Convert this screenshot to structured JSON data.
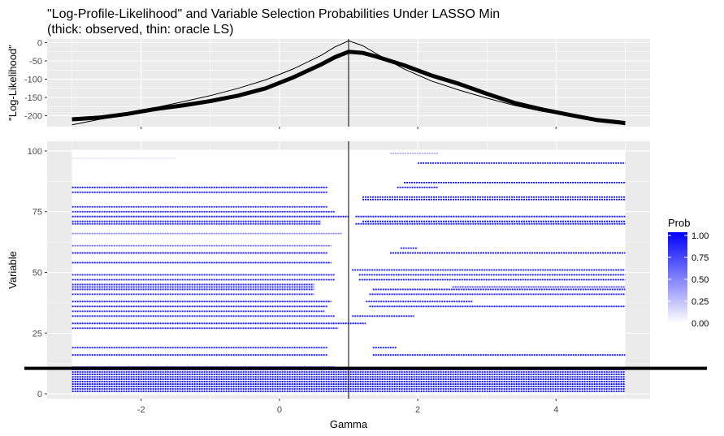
{
  "chart_data": {
    "type": "line+heatmap",
    "title": "\"Log-Profile-Likelihood\" and Variable Selection Probabilities Under LASSO Min",
    "subtitle": "(thick: observed, thin: oracle LS)",
    "xlabel": "Gamma",
    "x_range": [
      -3.0,
      5.0
    ],
    "x_ticks": [
      "-2",
      "0",
      "2",
      "4"
    ],
    "x_tick_values": [
      -2,
      0,
      2,
      4
    ],
    "vertical_line_x": 1.0,
    "top_panel": {
      "ylabel": "\"Log-Likelihood\"",
      "ylim": [
        -230,
        10
      ],
      "y_ticks": [
        "0",
        "-50",
        "-100",
        "-150",
        "-200"
      ],
      "y_tick_values": [
        0,
        -50,
        -100,
        -150,
        -200
      ],
      "observed_series": {
        "x": [
          -3.0,
          -2.6,
          -2.2,
          -1.8,
          -1.4,
          -1.0,
          -0.6,
          -0.2,
          0.2,
          0.6,
          0.8,
          1.0,
          1.2,
          1.4,
          1.8,
          2.2,
          2.6,
          3.0,
          3.4,
          3.8,
          4.2,
          4.6,
          5.0
        ],
        "y": [
          -210,
          -205,
          -195,
          -182,
          -172,
          -160,
          -145,
          -125,
          -95,
          -60,
          -40,
          -25,
          -28,
          -38,
          -62,
          -90,
          -113,
          -140,
          -165,
          -183,
          -198,
          -212,
          -220
        ]
      },
      "oracle_series": {
        "x": [
          -3.0,
          -2.6,
          -2.2,
          -1.8,
          -1.4,
          -1.0,
          -0.6,
          -0.2,
          0.2,
          0.6,
          0.8,
          1.0,
          1.2,
          1.4,
          1.8,
          2.2,
          2.6,
          3.0,
          3.4,
          3.8,
          4.2,
          4.6,
          5.0
        ],
        "y": [
          -225,
          -210,
          -195,
          -178,
          -162,
          -145,
          -125,
          -102,
          -72,
          -35,
          -12,
          5,
          -8,
          -30,
          -72,
          -105,
          -130,
          -152,
          -172,
          -188,
          -200,
          -212,
          -225
        ]
      }
    },
    "bottom_panel": {
      "ylabel": "Variable",
      "ylim": [
        -2,
        104
      ],
      "y_ticks": [
        "0",
        "25",
        "50",
        "75",
        "100"
      ],
      "y_tick_values": [
        0,
        25,
        50,
        75,
        100
      ],
      "horizontal_line_y": 10.5,
      "fill_full_range_up_to": 10,
      "segments": [
        {
          "var": 11,
          "x0": -3.0,
          "x1": 0.8,
          "p": 0.95
        },
        {
          "var": 16,
          "x0": -3.0,
          "x1": 0.7,
          "p": 0.95
        },
        {
          "var": 16,
          "x0": 1.35,
          "x1": 5.0,
          "p": 0.95
        },
        {
          "var": 19,
          "x0": -3.0,
          "x1": 0.7,
          "p": 0.9
        },
        {
          "var": 19,
          "x0": 1.35,
          "x1": 1.7,
          "p": 0.9
        },
        {
          "var": 27,
          "x0": -3.0,
          "x1": 0.85,
          "p": 0.9
        },
        {
          "var": 29,
          "x0": -3.0,
          "x1": 1.25,
          "p": 0.95
        },
        {
          "var": 32,
          "x0": -3.0,
          "x1": 0.8,
          "p": 0.9
        },
        {
          "var": 32,
          "x0": 1.05,
          "x1": 1.95,
          "p": 0.9
        },
        {
          "var": 34,
          "x0": -3.0,
          "x1": 0.65,
          "p": 0.9
        },
        {
          "var": 36,
          "x0": -3.0,
          "x1": 0.7,
          "p": 0.95
        },
        {
          "var": 36,
          "x0": 1.3,
          "x1": 5.0,
          "p": 0.95
        },
        {
          "var": 38,
          "x0": -3.0,
          "x1": 0.75,
          "p": 0.95
        },
        {
          "var": 38,
          "x0": 1.25,
          "x1": 2.8,
          "p": 0.9
        },
        {
          "var": 41,
          "x0": -3.0,
          "x1": 0.5,
          "p": 0.9
        },
        {
          "var": 41,
          "x0": 1.3,
          "x1": 5.0,
          "p": 0.95
        },
        {
          "var": 43,
          "x0": -3.0,
          "x1": 0.5,
          "p": 0.9
        },
        {
          "var": 43,
          "x0": 1.35,
          "x1": 5.0,
          "p": 0.9
        },
        {
          "var": 44,
          "x0": -3.0,
          "x1": 0.5,
          "p": 0.9
        },
        {
          "var": 44,
          "x0": 2.5,
          "x1": 5.0,
          "p": 0.75
        },
        {
          "var": 45,
          "x0": -3.0,
          "x1": 0.5,
          "p": 0.9
        },
        {
          "var": 47,
          "x0": -3.0,
          "x1": 0.8,
          "p": 0.9
        },
        {
          "var": 47,
          "x0": 1.15,
          "x1": 5.0,
          "p": 0.95
        },
        {
          "var": 49,
          "x0": -3.0,
          "x1": 0.8,
          "p": 0.9
        },
        {
          "var": 49,
          "x0": 1.15,
          "x1": 5.0,
          "p": 0.95
        },
        {
          "var": 51,
          "x0": 1.05,
          "x1": 5.0,
          "p": 0.95
        },
        {
          "var": 54,
          "x0": -3.0,
          "x1": 0.75,
          "p": 0.95
        },
        {
          "var": 58,
          "x0": -3.0,
          "x1": 0.7,
          "p": 0.95
        },
        {
          "var": 58,
          "x0": 1.6,
          "x1": 5.0,
          "p": 0.95
        },
        {
          "var": 60,
          "x0": 1.75,
          "x1": 2.0,
          "p": 0.9
        },
        {
          "var": 61,
          "x0": -3.0,
          "x1": 0.75,
          "p": 0.6
        },
        {
          "var": 66,
          "x0": -3.0,
          "x1": 0.9,
          "p": 0.5
        },
        {
          "var": 70,
          "x0": -3.0,
          "x1": 0.6,
          "p": 0.9
        },
        {
          "var": 70,
          "x0": 1.1,
          "x1": 5.0,
          "p": 0.95
        },
        {
          "var": 71,
          "x0": -3.0,
          "x1": 0.6,
          "p": 0.9
        },
        {
          "var": 71,
          "x0": 1.2,
          "x1": 5.0,
          "p": 0.95
        },
        {
          "var": 73,
          "x0": -3.0,
          "x1": 1.0,
          "p": 0.95
        },
        {
          "var": 73,
          "x0": 1.1,
          "x1": 5.0,
          "p": 0.95
        },
        {
          "var": 75,
          "x0": -3.0,
          "x1": 0.8,
          "p": 0.9
        },
        {
          "var": 77,
          "x0": -3.0,
          "x1": 0.7,
          "p": 0.9
        },
        {
          "var": 80,
          "x0": 1.2,
          "x1": 5.0,
          "p": 0.95
        },
        {
          "var": 81,
          "x0": 1.2,
          "x1": 5.0,
          "p": 0.95
        },
        {
          "var": 83,
          "x0": -3.0,
          "x1": 0.7,
          "p": 0.9
        },
        {
          "var": 85,
          "x0": -3.0,
          "x1": 0.7,
          "p": 0.95
        },
        {
          "var": 85,
          "x0": 1.7,
          "x1": 2.3,
          "p": 0.9
        },
        {
          "var": 87,
          "x0": 1.8,
          "x1": 5.0,
          "p": 0.95
        },
        {
          "var": 95,
          "x0": 2.0,
          "x1": 5.0,
          "p": 0.9
        },
        {
          "var": 97,
          "x0": -3.0,
          "x1": -1.5,
          "p": 0.1
        },
        {
          "var": 99,
          "x0": 1.6,
          "x1": 2.3,
          "p": 0.3
        }
      ]
    },
    "legend": {
      "title": "Prob",
      "placement": "right",
      "ticks": [
        "1.00",
        "0.75",
        "0.50",
        "0.25",
        "0.00"
      ],
      "tick_values": [
        1.0,
        0.75,
        0.5,
        0.25,
        0.0
      ],
      "low_color": "#ffffff",
      "high_color": "#0000ff"
    },
    "colors": {
      "panel_bg": "#ebebeb",
      "grid": "#ffffff",
      "line": "#000000",
      "tick_text": "#4d4d4d"
    }
  }
}
